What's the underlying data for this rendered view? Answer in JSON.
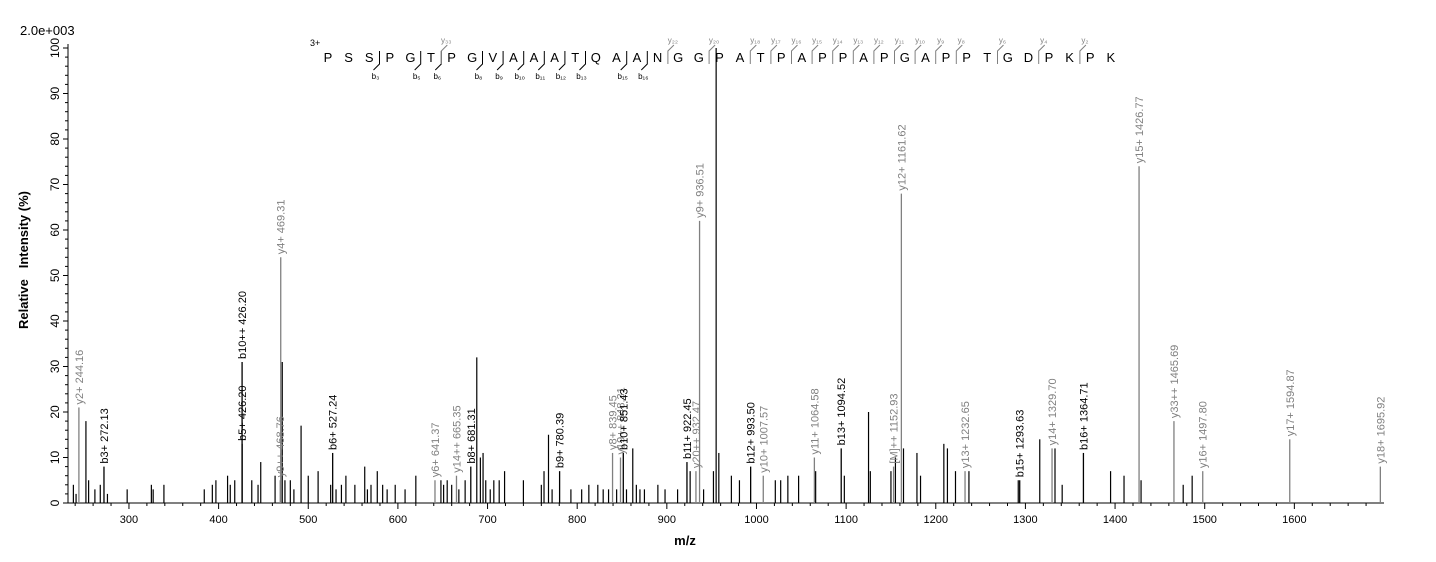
{
  "chart_data": {
    "type": "bar",
    "scale_label": "2.0e+003",
    "xlabel": "m/z",
    "ylabel": "Relative   Intensity (%)",
    "xlim": [
      232,
      1700
    ],
    "ylim": [
      0,
      100
    ],
    "x_ticks": [
      300,
      400,
      500,
      600,
      700,
      800,
      900,
      1000,
      1100,
      1200,
      1300,
      1400,
      1500,
      1600
    ],
    "y_ticks": [
      0,
      10,
      20,
      30,
      40,
      50,
      60,
      70,
      80,
      90,
      100
    ],
    "colors": {
      "b_ion": "#000000",
      "y_ion": "#808080",
      "noise": "#000000"
    },
    "labeled_peaks": [
      {
        "x": 244.16,
        "y": 21,
        "label": "y2+ 244.16",
        "ion": "y"
      },
      {
        "x": 272.13,
        "y": 8,
        "label": "b3+ 272.13",
        "ion": "b"
      },
      {
        "x": 426.2,
        "y": 13,
        "label": "b5+ 426.20",
        "ion": "b"
      },
      {
        "x": 426.2,
        "y": 31,
        "label": "b10++ 426.20",
        "ion": "b"
      },
      {
        "x": 468.76,
        "y": 5,
        "label": "y9++ 468.76",
        "ion": "y"
      },
      {
        "x": 469.31,
        "y": 54,
        "label": "y4+ 469.31",
        "ion": "y"
      },
      {
        "x": 527.24,
        "y": 11,
        "label": "b6+ 527.24",
        "ion": "b"
      },
      {
        "x": 641.37,
        "y": 5,
        "label": "y6+ 641.37",
        "ion": "y"
      },
      {
        "x": 665.35,
        "y": 6,
        "label": "y14++ 665.35",
        "ion": "y"
      },
      {
        "x": 681.31,
        "y": 8,
        "label": "b8+ 681.31",
        "ion": "b"
      },
      {
        "x": 780.39,
        "y": 7,
        "label": "b9+ 780.39",
        "ion": "b"
      },
      {
        "x": 839.45,
        "y": 11,
        "label": "y8+ 839.45",
        "ion": "y"
      },
      {
        "x": 848.31,
        "y": 10,
        "label": "y19++ 848.31",
        "ion": "y"
      },
      {
        "x": 851.43,
        "y": 11,
        "label": "b10+ 851.43",
        "ion": "b"
      },
      {
        "x": 922.45,
        "y": 9,
        "label": "b11+ 922.45",
        "ion": "b"
      },
      {
        "x": 932.47,
        "y": 7,
        "label": "y20++ 932.47",
        "ion": "y"
      },
      {
        "x": 936.51,
        "y": 62,
        "label": "y9+ 936.51",
        "ion": "y"
      },
      {
        "x": 993.5,
        "y": 8,
        "label": "b12+ 993.50",
        "ion": "b"
      },
      {
        "x": 1007.57,
        "y": 6,
        "label": "y10+ 1007.57",
        "ion": "y"
      },
      {
        "x": 1064.58,
        "y": 10,
        "label": "y11+ 1064.58",
        "ion": "y"
      },
      {
        "x": 1094.52,
        "y": 12,
        "label": "b13+ 1094.52",
        "ion": "b"
      },
      {
        "x": 1152.93,
        "y": 8,
        "label": "[M]++ 1152.93",
        "ion": "y"
      },
      {
        "x": 1161.62,
        "y": 68,
        "label": "y12+ 1161.62",
        "ion": "y"
      },
      {
        "x": 1232.65,
        "y": 7,
        "label": "y13+ 1232.65",
        "ion": "y"
      },
      {
        "x": 1293.63,
        "y": 5,
        "label": "b15+ 1293.63",
        "ion": "b"
      },
      {
        "x": 1329.7,
        "y": 12,
        "label": "y14+ 1329.70",
        "ion": "y"
      },
      {
        "x": 1364.71,
        "y": 11,
        "label": "b16+ 1364.71",
        "ion": "b"
      },
      {
        "x": 1426.77,
        "y": 74,
        "label": "y15+ 1426.77",
        "ion": "y"
      },
      {
        "x": 1465.69,
        "y": 18,
        "label": "y33++ 1465.69",
        "ion": "y"
      },
      {
        "x": 1497.8,
        "y": 7,
        "label": "y16+ 1497.80",
        "ion": "y"
      },
      {
        "x": 1594.87,
        "y": 14,
        "label": "y17+ 1594.87",
        "ion": "y"
      },
      {
        "x": 1695.92,
        "y": 8,
        "label": "y18+ 1695.92",
        "ion": "y"
      }
    ],
    "unlabeled_peaks": [
      [
        238,
        4
      ],
      [
        241,
        2
      ],
      [
        252,
        18
      ],
      [
        255,
        5
      ],
      [
        262,
        3
      ],
      [
        268,
        4
      ],
      [
        276,
        2
      ],
      [
        298,
        3
      ],
      [
        325,
        4
      ],
      [
        327,
        3
      ],
      [
        339,
        4
      ],
      [
        384,
        3
      ],
      [
        393,
        4
      ],
      [
        397,
        5
      ],
      [
        410,
        6
      ],
      [
        413,
        4
      ],
      [
        418,
        5
      ],
      [
        437,
        5
      ],
      [
        444,
        4
      ],
      [
        447,
        9
      ],
      [
        463,
        6
      ],
      [
        471,
        31
      ],
      [
        474,
        5
      ],
      [
        480,
        5
      ],
      [
        484,
        3
      ],
      [
        492,
        17
      ],
      [
        500,
        6
      ],
      [
        511,
        7
      ],
      [
        525,
        4
      ],
      [
        531,
        3
      ],
      [
        537,
        4
      ],
      [
        542,
        6
      ],
      [
        552,
        4
      ],
      [
        563,
        8
      ],
      [
        566,
        3
      ],
      [
        570,
        4
      ],
      [
        577,
        7
      ],
      [
        583,
        4
      ],
      [
        588,
        3
      ],
      [
        597,
        4
      ],
      [
        608,
        3
      ],
      [
        620,
        6
      ],
      [
        648,
        5
      ],
      [
        651,
        4
      ],
      [
        655,
        5
      ],
      [
        660,
        4
      ],
      [
        668,
        3
      ],
      [
        675,
        5
      ],
      [
        688,
        32
      ],
      [
        692,
        10
      ],
      [
        695,
        11
      ],
      [
        698,
        5
      ],
      [
        703,
        3
      ],
      [
        707,
        5
      ],
      [
        713,
        5
      ],
      [
        719,
        7
      ],
      [
        740,
        5
      ],
      [
        760,
        4
      ],
      [
        763,
        7
      ],
      [
        768,
        15
      ],
      [
        772,
        3
      ],
      [
        793,
        3
      ],
      [
        805,
        3
      ],
      [
        813,
        4
      ],
      [
        823,
        4
      ],
      [
        829,
        3
      ],
      [
        835,
        3
      ],
      [
        844,
        3
      ],
      [
        855,
        3
      ],
      [
        862,
        12
      ],
      [
        866,
        4
      ],
      [
        870,
        3
      ],
      [
        875,
        3
      ],
      [
        890,
        4
      ],
      [
        898,
        3
      ],
      [
        912,
        3
      ],
      [
        926,
        7
      ],
      [
        941,
        3
      ],
      [
        952,
        7
      ],
      [
        955,
        100
      ],
      [
        958,
        11
      ],
      [
        972,
        6
      ],
      [
        981,
        5
      ],
      [
        1021,
        5
      ],
      [
        1027,
        5
      ],
      [
        1035,
        6
      ],
      [
        1047,
        6
      ],
      [
        1066,
        7
      ],
      [
        1098,
        6
      ],
      [
        1125,
        20
      ],
      [
        1127,
        7
      ],
      [
        1150,
        7
      ],
      [
        1155,
        10
      ],
      [
        1164,
        12
      ],
      [
        1179,
        11
      ],
      [
        1183,
        6
      ],
      [
        1209,
        13
      ],
      [
        1213,
        12
      ],
      [
        1222,
        7
      ],
      [
        1237,
        7
      ],
      [
        1292,
        5
      ],
      [
        1316,
        14
      ],
      [
        1333,
        12
      ],
      [
        1341,
        4
      ],
      [
        1395,
        7
      ],
      [
        1410,
        6
      ],
      [
        1429,
        5
      ],
      [
        1476,
        4
      ],
      [
        1486,
        6
      ]
    ],
    "sequence": {
      "charge": "3+",
      "residues": [
        "P",
        "S",
        "S",
        "P",
        "G",
        "T",
        "P",
        "G",
        "V",
        "A",
        "A",
        "A",
        "T",
        "Q",
        "A",
        "A",
        "N",
        "G",
        "G",
        "P",
        "A",
        "T",
        "P",
        "A",
        "P",
        "P",
        "A",
        "P",
        "G",
        "A",
        "P",
        "P",
        "T",
        "G",
        "D",
        "P",
        "K",
        "P",
        "K"
      ],
      "b_ions": [
        {
          "label": "b₃",
          "after": 3
        },
        {
          "label": "b₅",
          "after": 5
        },
        {
          "label": "b₆",
          "after": 6
        },
        {
          "label": "b₈",
          "after": 8
        },
        {
          "label": "b₉",
          "after": 9
        },
        {
          "label": "b₁₀",
          "after": 10
        },
        {
          "label": "b₁₁",
          "after": 11
        },
        {
          "label": "b₁₂",
          "after": 12
        },
        {
          "label": "b₁₃",
          "after": 13
        },
        {
          "label": "b₁₅",
          "after": 15
        },
        {
          "label": "b₁₆",
          "after": 16
        }
      ],
      "y_ions": [
        {
          "label": "y₃₃",
          "after": 6
        },
        {
          "label": "y₂₂",
          "after": 17
        },
        {
          "label": "y₂₀",
          "after": 19
        },
        {
          "label": "y₁₈",
          "after": 21
        },
        {
          "label": "y₁₇",
          "after": 22
        },
        {
          "label": "y₁₆",
          "after": 23
        },
        {
          "label": "y₁₅",
          "after": 24
        },
        {
          "label": "y₁₄",
          "after": 25
        },
        {
          "label": "y₁₃",
          "after": 26
        },
        {
          "label": "y₁₂",
          "after": 27
        },
        {
          "label": "y₁₁",
          "after": 28
        },
        {
          "label": "y₁₀",
          "after": 29
        },
        {
          "label": "y₉",
          "after": 30
        },
        {
          "label": "y₈",
          "after": 31
        },
        {
          "label": "y₆",
          "after": 33
        },
        {
          "label": "y₄",
          "after": 35
        },
        {
          "label": "y₂",
          "after": 37
        }
      ]
    }
  }
}
